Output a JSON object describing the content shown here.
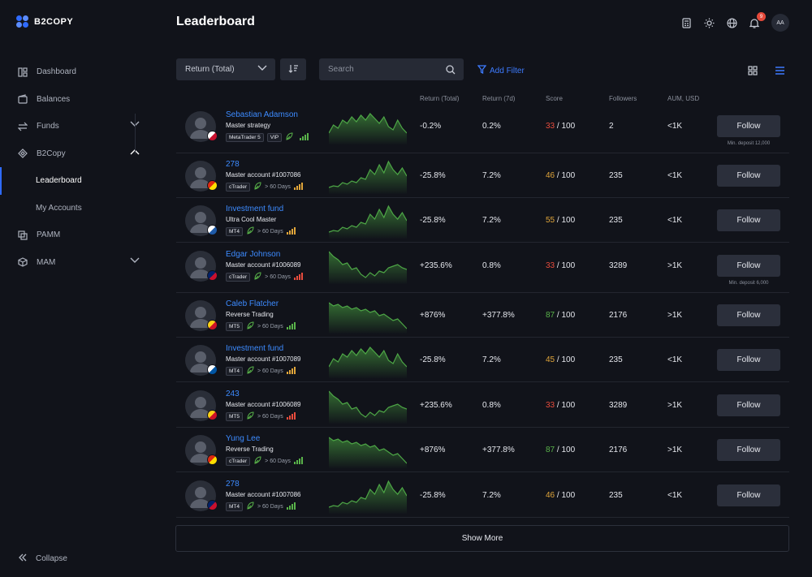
{
  "app": {
    "logo": "B2COPY"
  },
  "sidebar": {
    "items": [
      {
        "label": "Dashboard",
        "icon": "dashboard-icon"
      },
      {
        "label": "Balances",
        "icon": "wallet-icon"
      },
      {
        "label": "Funds",
        "icon": "transfer-icon"
      },
      {
        "label": "B2Copy",
        "icon": "copy-icon"
      },
      {
        "label": "Leaderboard"
      },
      {
        "label": "My Accounts"
      },
      {
        "label": "PAMM",
        "icon": "pamm-icon"
      },
      {
        "label": "MAM",
        "icon": "mam-icon"
      }
    ],
    "collapse_label": "Collapse"
  },
  "header": {
    "title": "Leaderboard",
    "notification_count": "9",
    "avatar_initials": "AA"
  },
  "toolbar": {
    "sort_select": "Return (Total)",
    "search_placeholder": "Search",
    "add_filter": "Add Filter"
  },
  "table": {
    "columns": [
      "Return (Total)",
      "Return (7d)",
      "Score",
      "Followers",
      "AUM, USD"
    ],
    "follow_label": "Follow",
    "rows": [
      {
        "name": "Sebastian Adamson",
        "sub": "Master strategy",
        "tags": [
          "MetaTrader 5",
          "VIP"
        ],
        "days": "",
        "ret_total": "-0.2%",
        "ret_7d": "0.2%",
        "score": "33",
        "score_max": " / 100",
        "followers": "2",
        "aum": "<1K",
        "min_deposit": "Min. deposit 12,000",
        "score_color": "red",
        "bars_color": "#59b34a",
        "flag": [
          "#ffffff",
          "#c8102e"
        ],
        "spark": [
          30,
          20,
          24,
          14,
          18,
          10,
          16,
          8,
          14,
          6,
          12,
          18,
          10,
          22,
          26,
          14,
          24,
          30
        ]
      },
      {
        "name": "278",
        "sub": "Master account #1007086",
        "tags": [
          "cTrader"
        ],
        "days": "> 60 Days",
        "ret_total": "-25.8%",
        "ret_7d": "7.2%",
        "score": "46",
        "score_max": " / 100",
        "followers": "235",
        "aum": "<1K",
        "min_deposit": "",
        "score_color": "yellow",
        "bars_color": "#e0a53a",
        "flag": [
          "#de2910",
          "#ffde00"
        ],
        "spark": [
          36,
          34,
          35,
          30,
          32,
          28,
          30,
          24,
          26,
          14,
          20,
          8,
          18,
          4,
          14,
          20,
          12,
          22
        ]
      },
      {
        "name": "Investment fund",
        "sub": "Ultra Cool Master",
        "tags": [
          "MT4"
        ],
        "days": "> 60 Days",
        "ret_total": "-25.8%",
        "ret_7d": "7.2%",
        "score": "55",
        "score_max": " / 100",
        "followers": "235",
        "aum": "<1K",
        "min_deposit": "",
        "score_color": "yellow",
        "bars_color": "#e0a53a",
        "flag": [
          "#ffffff",
          "#1e5aa8"
        ],
        "spark": [
          36,
          34,
          35,
          30,
          32,
          28,
          30,
          24,
          26,
          14,
          20,
          8,
          18,
          4,
          14,
          20,
          12,
          22
        ]
      },
      {
        "name": "Edgar Johnson",
        "sub": "Master account #1006089",
        "tags": [
          "cTrader"
        ],
        "days": "> 60 Days",
        "ret_total": "+235.6%",
        "ret_7d": "0.8%",
        "score": "33",
        "score_max": " / 100",
        "followers": "3289",
        "aum": ">1K",
        "min_deposit": "Min. deposit 6,000",
        "score_color": "red",
        "bars_color": "#e84c3d",
        "flag": [
          "#012169",
          "#c8102e"
        ],
        "spark": [
          4,
          10,
          14,
          20,
          18,
          26,
          24,
          32,
          36,
          30,
          34,
          28,
          30,
          24,
          22,
          20,
          24,
          26
        ]
      },
      {
        "name": "Caleb Flatcher",
        "sub": "Reverse Trading",
        "tags": [
          "MT5"
        ],
        "days": "> 60 Days",
        "ret_total": "+876%",
        "ret_7d": "+377.8%",
        "score": "87",
        "score_max": " / 100",
        "followers": "2176",
        "aum": ">1K",
        "min_deposit": "",
        "score_color": "green",
        "bars_color": "#59b34a",
        "flag": [
          "#fcd116",
          "#ce1126"
        ],
        "spark": [
          6,
          10,
          8,
          12,
          10,
          14,
          12,
          16,
          14,
          18,
          16,
          22,
          20,
          24,
          28,
          26,
          32,
          38
        ]
      },
      {
        "name": "Investment fund",
        "sub": "Master account #1007089",
        "tags": [
          "MT4"
        ],
        "days": "> 60 Days",
        "ret_total": "-25.8%",
        "ret_7d": "7.2%",
        "score": "45",
        "score_max": " / 100",
        "followers": "235",
        "aum": "<1K",
        "min_deposit": "",
        "score_color": "yellow",
        "bars_color": "#e0a53a",
        "flag": [
          "#ffffff",
          "#0055a4"
        ],
        "spark": [
          30,
          20,
          24,
          14,
          18,
          10,
          16,
          8,
          14,
          6,
          12,
          18,
          10,
          22,
          26,
          14,
          24,
          30
        ]
      },
      {
        "name": "243",
        "sub": "Master account #1006089",
        "tags": [
          "MT5"
        ],
        "days": "> 60 Days",
        "ret_total": "+235.6%",
        "ret_7d": "0.8%",
        "score": "33",
        "score_max": " / 100",
        "followers": "3289",
        "aum": ">1K",
        "min_deposit": "",
        "score_color": "red",
        "bars_color": "#e84c3d",
        "flag": [
          "#fcd116",
          "#ce1126"
        ],
        "spark": [
          4,
          10,
          14,
          20,
          18,
          26,
          24,
          32,
          36,
          30,
          34,
          28,
          30,
          24,
          22,
          20,
          24,
          26
        ]
      },
      {
        "name": "Yung Lee",
        "sub": "Reverse Trading",
        "tags": [
          "cTrader"
        ],
        "days": "> 60 Days",
        "ret_total": "+876%",
        "ret_7d": "+377.8%",
        "score": "87",
        "score_max": " / 100",
        "followers": "2176",
        "aum": ">1K",
        "min_deposit": "",
        "score_color": "green",
        "bars_color": "#59b34a",
        "flag": [
          "#de2910",
          "#ffde00"
        ],
        "spark": [
          6,
          10,
          8,
          12,
          10,
          14,
          12,
          16,
          14,
          18,
          16,
          22,
          20,
          24,
          28,
          26,
          32,
          38
        ]
      },
      {
        "name": "278",
        "sub": "Master account #1007086",
        "tags": [
          "MT4"
        ],
        "days": "> 60 Days",
        "ret_total": "-25.8%",
        "ret_7d": "7.2%",
        "score": "46",
        "score_max": " / 100",
        "followers": "235",
        "aum": "<1K",
        "min_deposit": "",
        "score_color": "yellow",
        "bars_color": "#59b34a",
        "flag": [
          "#012169",
          "#c8102e"
        ],
        "spark": [
          36,
          34,
          35,
          30,
          32,
          28,
          30,
          24,
          26,
          14,
          20,
          8,
          18,
          4,
          14,
          20,
          12,
          22
        ]
      }
    ]
  },
  "footer": {
    "show_more": "Show More"
  }
}
